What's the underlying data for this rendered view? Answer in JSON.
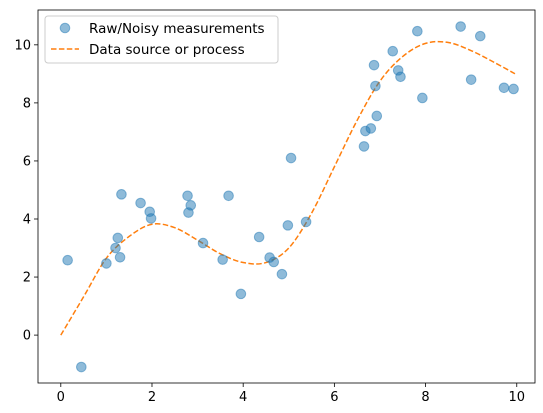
{
  "chart_data": {
    "type": "scatter",
    "title": "",
    "xlabel": "",
    "ylabel": "",
    "xlim": [
      -0.5,
      10.4
    ],
    "ylim": [
      -1.65,
      11.2
    ],
    "xticks": [
      0,
      2,
      4,
      6,
      8,
      10
    ],
    "yticks": [
      0,
      2,
      4,
      6,
      8,
      10
    ],
    "grid": false,
    "legend_position": "top-left",
    "series": [
      {
        "name": "Raw/Noisy measurements",
        "kind": "scatter",
        "color": "#1f77b4",
        "x": [
          0.15,
          0.45,
          1.0,
          1.2,
          1.25,
          1.3,
          1.33,
          1.75,
          1.95,
          1.98,
          2.78,
          2.8,
          2.85,
          3.12,
          3.55,
          3.68,
          3.95,
          4.35,
          4.58,
          4.67,
          4.85,
          4.98,
          5.05,
          5.38,
          6.65,
          6.68,
          6.8,
          6.87,
          6.9,
          6.93,
          7.28,
          7.4,
          7.45,
          7.82,
          7.93,
          8.77,
          9.0,
          9.2,
          9.72,
          9.93
        ],
        "y": [
          2.58,
          -1.1,
          2.47,
          3.0,
          3.35,
          2.68,
          4.85,
          4.55,
          4.25,
          4.02,
          4.8,
          4.22,
          4.47,
          3.17,
          2.6,
          4.8,
          1.42,
          3.38,
          2.67,
          2.52,
          2.1,
          3.78,
          6.1,
          3.9,
          6.5,
          7.03,
          7.12,
          9.3,
          8.58,
          7.55,
          9.78,
          9.12,
          8.9,
          10.47,
          8.17,
          10.63,
          8.8,
          10.3,
          8.52,
          8.48
        ]
      },
      {
        "name": "Data source or process",
        "kind": "line",
        "color": "#ff7f0e",
        "x": [
          0,
          0.5,
          1,
          1.5,
          2,
          2.5,
          3,
          3.5,
          4,
          4.5,
          5,
          5.5,
          6,
          6.5,
          7,
          7.5,
          8,
          8.5,
          9,
          9.5,
          10
        ],
        "y": [
          0.0,
          1.32,
          2.65,
          3.4,
          3.82,
          3.7,
          3.27,
          2.8,
          2.5,
          2.5,
          3.0,
          4.2,
          5.8,
          7.4,
          8.75,
          9.6,
          10.05,
          10.08,
          9.8,
          9.4,
          8.97
        ]
      }
    ]
  }
}
